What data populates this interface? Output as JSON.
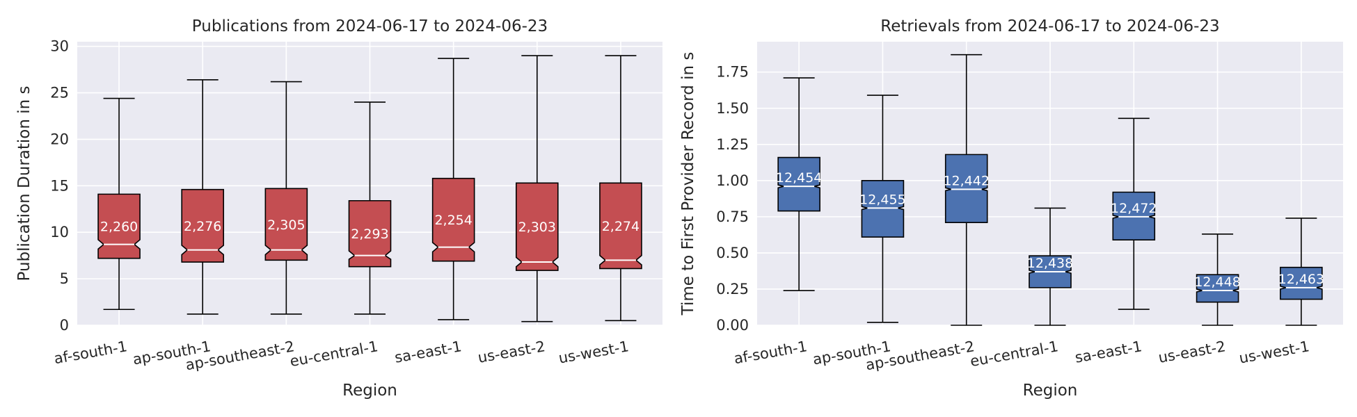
{
  "chart_data": [
    {
      "type": "box",
      "title": "Publications from 2024-06-17 to 2024-06-23",
      "xlabel": "Region",
      "ylabel": "Publication Duration in s",
      "ylim": [
        0,
        30.5
      ],
      "yticks": [
        0,
        5,
        10,
        15,
        20,
        25,
        30
      ],
      "ytick_labels": [
        "0",
        "5",
        "10",
        "15",
        "20",
        "25",
        "30"
      ],
      "grid": true,
      "notched": true,
      "box_color": "#c44e52",
      "categories": [
        "af-south-1",
        "ap-south-1",
        "ap-southeast-2",
        "eu-central-1",
        "sa-east-1",
        "us-east-2",
        "us-west-1"
      ],
      "whisker_low": [
        1.7,
        1.2,
        1.2,
        1.2,
        0.6,
        0.4,
        0.5
      ],
      "q1": [
        7.2,
        6.8,
        7.0,
        6.3,
        6.9,
        5.9,
        6.1
      ],
      "median": [
        8.7,
        8.1,
        8.1,
        7.5,
        8.4,
        6.8,
        7.0
      ],
      "q3": [
        14.1,
        14.6,
        14.7,
        13.4,
        15.8,
        15.3,
        15.3
      ],
      "whisker_high": [
        24.4,
        26.4,
        26.2,
        24.0,
        28.7,
        29.0,
        29.0
      ],
      "notch_low": [
        8.2,
        7.6,
        7.6,
        7.1,
        7.9,
        6.3,
        6.5
      ],
      "notch_high": [
        9.2,
        8.6,
        8.6,
        8.0,
        8.9,
        7.3,
        7.5
      ],
      "counts": [
        "2,260",
        "2,276",
        "2,305",
        "2,293",
        "2,254",
        "2,303",
        "2,274"
      ]
    },
    {
      "type": "box",
      "title": "Retrievals from 2024-06-17 to 2024-06-23",
      "xlabel": "Region",
      "ylabel": "Time to First Provider Record in s",
      "ylim": [
        0,
        1.96
      ],
      "yticks": [
        0,
        0.25,
        0.5,
        0.75,
        1.0,
        1.25,
        1.5,
        1.75
      ],
      "ytick_labels": [
        "0.00",
        "0.25",
        "0.50",
        "0.75",
        "1.00",
        "1.25",
        "1.50",
        "1.75"
      ],
      "grid": true,
      "notched": true,
      "box_color": "#4c72b0",
      "categories": [
        "af-south-1",
        "ap-south-1",
        "ap-southeast-2",
        "eu-central-1",
        "sa-east-1",
        "us-east-2",
        "us-west-1"
      ],
      "whisker_low": [
        0.24,
        0.02,
        0.0,
        0.0,
        0.11,
        0.0,
        0.0
      ],
      "q1": [
        0.79,
        0.61,
        0.71,
        0.26,
        0.59,
        0.16,
        0.18
      ],
      "median": [
        0.96,
        0.81,
        0.94,
        0.37,
        0.75,
        0.24,
        0.26
      ],
      "q3": [
        1.16,
        1.0,
        1.18,
        0.48,
        0.92,
        0.35,
        0.4
      ],
      "whisker_high": [
        1.71,
        1.59,
        1.87,
        0.81,
        1.43,
        0.63,
        0.74
      ],
      "notch_low": [
        0.95,
        0.8,
        0.93,
        0.36,
        0.74,
        0.23,
        0.25
      ],
      "notch_high": [
        0.97,
        0.82,
        0.95,
        0.38,
        0.76,
        0.25,
        0.27
      ],
      "counts": [
        "12,454",
        "12,455",
        "12,442",
        "12,438",
        "12,472",
        "12,448",
        "12,463"
      ]
    }
  ]
}
